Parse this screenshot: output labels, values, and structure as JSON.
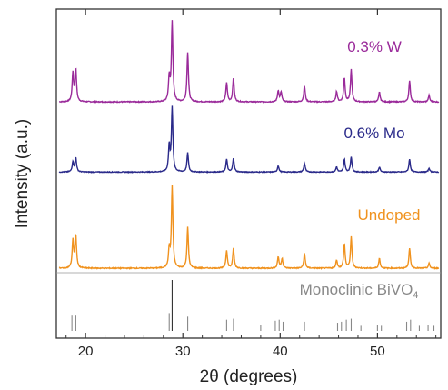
{
  "chart_data": {
    "type": "line",
    "xlabel": "2θ (degrees)",
    "ylabel": "Intensity (a.u.)",
    "xlim": [
      17,
      56.5
    ],
    "xticks": [
      20,
      30,
      40,
      50
    ],
    "y_ticks_shown": false,
    "grid": false,
    "series": [
      {
        "name": "0.3% W",
        "color": "#9a2a9a",
        "offset": 3.2,
        "amplitude": 1.0,
        "peaks": [
          [
            18.7,
            0.36
          ],
          [
            19.0,
            0.4
          ],
          [
            28.6,
            0.3
          ],
          [
            28.9,
            1.0
          ],
          [
            30.5,
            0.62
          ],
          [
            34.5,
            0.24
          ],
          [
            35.2,
            0.3
          ],
          [
            39.8,
            0.14
          ],
          [
            40.1,
            0.12
          ],
          [
            42.5,
            0.2
          ],
          [
            45.8,
            0.13
          ],
          [
            46.6,
            0.3
          ],
          [
            47.3,
            0.4
          ],
          [
            50.2,
            0.12
          ],
          [
            53.3,
            0.26
          ],
          [
            55.3,
            0.08
          ]
        ]
      },
      {
        "name": "0.6% Mo",
        "color": "#2a2a8a",
        "offset": 2.0,
        "amplitude": 0.9,
        "peaks": [
          [
            18.7,
            0.16
          ],
          [
            19.0,
            0.22
          ],
          [
            28.6,
            0.4
          ],
          [
            28.9,
            1.0
          ],
          [
            30.5,
            0.3
          ],
          [
            34.5,
            0.2
          ],
          [
            35.2,
            0.22
          ],
          [
            39.8,
            0.1
          ],
          [
            42.5,
            0.14
          ],
          [
            45.8,
            0.08
          ],
          [
            46.6,
            0.2
          ],
          [
            47.3,
            0.24
          ],
          [
            50.2,
            0.08
          ],
          [
            53.3,
            0.2
          ],
          [
            55.3,
            0.06
          ]
        ]
      },
      {
        "name": "Undoped",
        "color": "#f0921e",
        "offset": 0.85,
        "amplitude": 1.02,
        "peaks": [
          [
            18.7,
            0.34
          ],
          [
            19.0,
            0.4
          ],
          [
            28.6,
            0.22
          ],
          [
            28.9,
            1.0
          ],
          [
            30.5,
            0.5
          ],
          [
            34.5,
            0.22
          ],
          [
            35.2,
            0.24
          ],
          [
            39.8,
            0.14
          ],
          [
            40.2,
            0.12
          ],
          [
            42.5,
            0.18
          ],
          [
            45.8,
            0.1
          ],
          [
            46.6,
            0.3
          ],
          [
            47.3,
            0.38
          ],
          [
            50.2,
            0.12
          ],
          [
            53.3,
            0.24
          ],
          [
            55.3,
            0.06
          ]
        ]
      }
    ],
    "reference": {
      "name": "Monoclinic BiVO",
      "subscript": "4",
      "color": "#888888",
      "sticks": [
        [
          18.6,
          0.3
        ],
        [
          19.0,
          0.3
        ],
        [
          28.6,
          0.35
        ],
        [
          28.9,
          1.0
        ],
        [
          30.5,
          0.28
        ],
        [
          34.5,
          0.22
        ],
        [
          35.2,
          0.24
        ],
        [
          38.0,
          0.12
        ],
        [
          39.5,
          0.2
        ],
        [
          39.9,
          0.22
        ],
        [
          40.3,
          0.18
        ],
        [
          42.5,
          0.18
        ],
        [
          45.9,
          0.16
        ],
        [
          46.3,
          0.18
        ],
        [
          46.8,
          0.22
        ],
        [
          47.3,
          0.24
        ],
        [
          48.3,
          0.1
        ],
        [
          50.0,
          0.12
        ],
        [
          50.4,
          0.1
        ],
        [
          53.0,
          0.18
        ],
        [
          53.4,
          0.22
        ],
        [
          54.3,
          0.1
        ],
        [
          55.2,
          0.12
        ],
        [
          55.8,
          0.1
        ]
      ]
    }
  }
}
